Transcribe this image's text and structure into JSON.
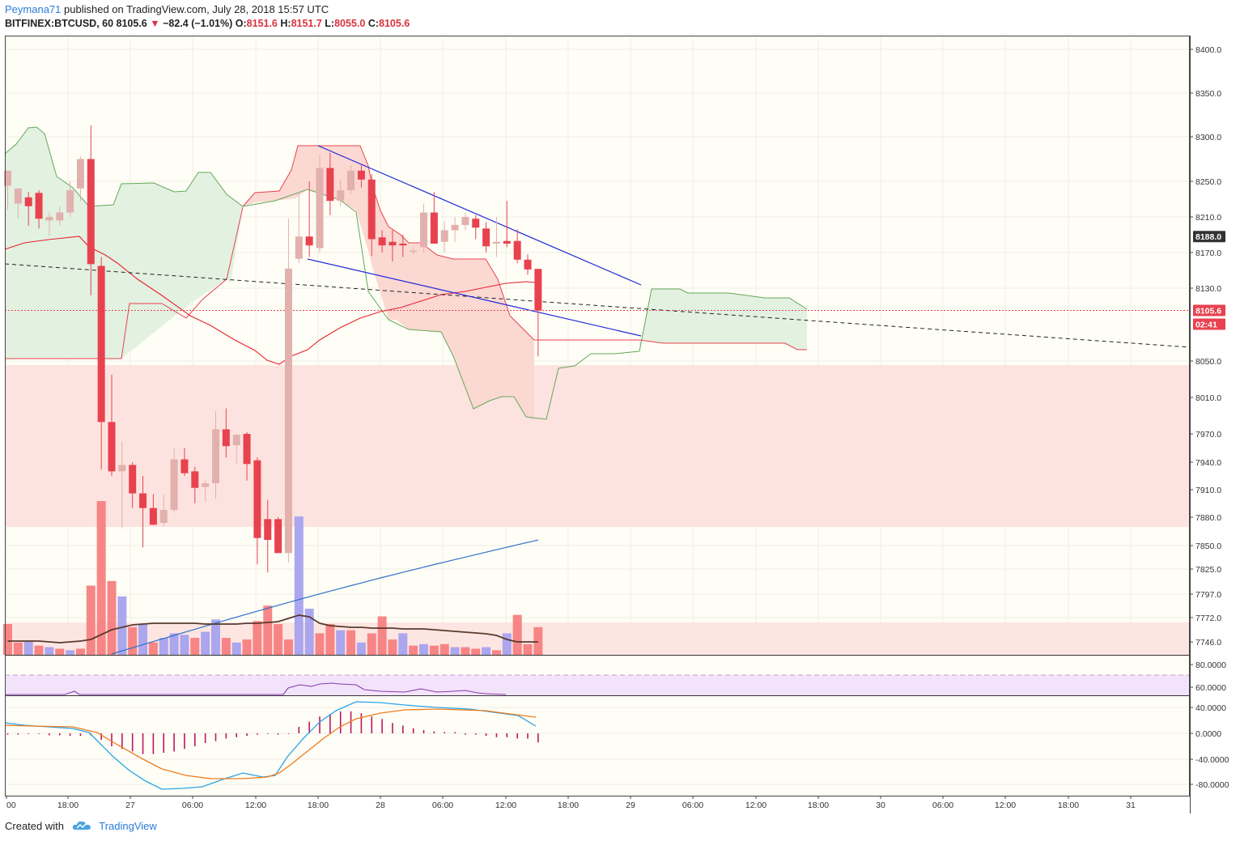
{
  "header": {
    "author": "Peymana71",
    "published": "published on TradingView.com, July 28, 2018 15:57 UTC",
    "symbol": "BITFINEX:BTCUSD, 60",
    "last": "8105.6",
    "arrow": "▼",
    "change": "−82.4 (−1.01%)",
    "o_label": "O:",
    "o_value": "8151.6",
    "h_label": "H:",
    "h_value": "8151.7",
    "l_label": "L:",
    "l_value": "8055.0",
    "c_label": "C:",
    "c_value": "8105.6"
  },
  "footer": {
    "created_with": "Created with",
    "brand": "TradingView",
    "logo_icon": "tradingview-cloud-icon"
  },
  "colors": {
    "up": "#e2b1ad",
    "down": "#e8424f",
    "cloud_green": "#e3f1e1",
    "cloud_red": "#fbd8d2",
    "zone": "#fde3df",
    "trend": "#1e28d9",
    "ma_blue": "#2d6fc9"
  },
  "chart_data": {
    "type": "candlestick",
    "title": "",
    "ylim": [
      7728,
      8425
    ],
    "price_ticks": [
      "8400.0",
      "8350.0",
      "8300.0",
      "8250.0",
      "8210.0",
      "8170.0",
      "8130.0",
      "8050.0",
      "8010.0",
      "7970.0",
      "7940.0",
      "7910.0",
      "7880.0",
      "7850.0",
      "7825.0",
      "7797.0",
      "7772.0",
      "7746.0"
    ],
    "price_tags": [
      {
        "text": "8188.0",
        "value": 8188.0,
        "color": "#333333"
      },
      {
        "text": "8105.6",
        "value": 8105.6,
        "color": "#e8424f"
      },
      {
        "text": "02:41",
        "value": 8088,
        "color": "#e8424f"
      }
    ],
    "x_ticks": [
      "00",
      "18:00",
      "27",
      "06:00",
      "12:00",
      "18:00",
      "28",
      "06:00",
      "12:00",
      "18:00",
      "29",
      "06:00",
      "12:00",
      "18:00",
      "30",
      "06:00",
      "12:00",
      "18:00",
      "31"
    ],
    "candles": [
      {
        "o": 8245,
        "h": 8262,
        "l": 8218,
        "c": 8262
      },
      {
        "o": 8225,
        "h": 8242,
        "l": 8208,
        "c": 8242
      },
      {
        "o": 8232,
        "h": 8238,
        "l": 8200,
        "c": 8222
      },
      {
        "o": 8237,
        "h": 8240,
        "l": 8197,
        "c": 8208
      },
      {
        "o": 8206,
        "h": 8215,
        "l": 8189,
        "c": 8210
      },
      {
        "o": 8206,
        "h": 8222,
        "l": 8200,
        "c": 8215
      },
      {
        "o": 8215,
        "h": 8250,
        "l": 8210,
        "c": 8240
      },
      {
        "o": 8242,
        "h": 8278,
        "l": 8228,
        "c": 8275
      },
      {
        "o": 8275,
        "h": 8313,
        "l": 8122,
        "c": 8157
      },
      {
        "o": 8155,
        "h": 8165,
        "l": 7932,
        "c": 7983
      },
      {
        "o": 7983,
        "h": 8035,
        "l": 7925,
        "c": 7930
      },
      {
        "o": 7930,
        "h": 7962,
        "l": 7868,
        "c": 7937
      },
      {
        "o": 7937,
        "h": 7940,
        "l": 7890,
        "c": 7906
      },
      {
        "o": 7906,
        "h": 7925,
        "l": 7848,
        "c": 7890
      },
      {
        "o": 7890,
        "h": 7905,
        "l": 7872,
        "c": 7872
      },
      {
        "o": 7874,
        "h": 7905,
        "l": 7870,
        "c": 7888
      },
      {
        "o": 7888,
        "h": 7955,
        "l": 7885,
        "c": 7943
      },
      {
        "o": 7943,
        "h": 7955,
        "l": 7925,
        "c": 7928
      },
      {
        "o": 7930,
        "h": 7935,
        "l": 7895,
        "c": 7912
      },
      {
        "o": 7913,
        "h": 7920,
        "l": 7897,
        "c": 7917
      },
      {
        "o": 7917,
        "h": 7995,
        "l": 7900,
        "c": 7975
      },
      {
        "o": 7975,
        "h": 7998,
        "l": 7945,
        "c": 7957
      },
      {
        "o": 7958,
        "h": 7970,
        "l": 7938,
        "c": 7969
      },
      {
        "o": 7970,
        "h": 7972,
        "l": 7920,
        "c": 7938
      },
      {
        "o": 7942,
        "h": 7945,
        "l": 7830,
        "c": 7858
      },
      {
        "o": 7878,
        "h": 7899,
        "l": 7821,
        "c": 7856
      },
      {
        "o": 7878,
        "h": 7880,
        "l": 7845,
        "c": 7842
      },
      {
        "o": 7842,
        "h": 8208,
        "l": 7832,
        "c": 8152
      },
      {
        "o": 8163,
        "h": 8238,
        "l": 8158,
        "c": 8188
      },
      {
        "o": 8188,
        "h": 8250,
        "l": 8165,
        "c": 8178
      },
      {
        "o": 8175,
        "h": 8280,
        "l": 8170,
        "c": 8265
      },
      {
        "o": 8265,
        "h": 8282,
        "l": 8212,
        "c": 8228
      },
      {
        "o": 8228,
        "h": 8252,
        "l": 8222,
        "c": 8240
      },
      {
        "o": 8240,
        "h": 8268,
        "l": 8236,
        "c": 8262
      },
      {
        "o": 8262,
        "h": 8268,
        "l": 8243,
        "c": 8252
      },
      {
        "o": 8252,
        "h": 8258,
        "l": 8166,
        "c": 8185
      },
      {
        "o": 8187,
        "h": 8195,
        "l": 8170,
        "c": 8178
      },
      {
        "o": 8182,
        "h": 8195,
        "l": 8160,
        "c": 8178
      },
      {
        "o": 8180,
        "h": 8190,
        "l": 8165,
        "c": 8178
      },
      {
        "o": 8172,
        "h": 8175,
        "l": 8168,
        "c": 8172
      },
      {
        "o": 8176,
        "h": 8225,
        "l": 8170,
        "c": 8215
      },
      {
        "o": 8215,
        "h": 8238,
        "l": 8180,
        "c": 8180
      },
      {
        "o": 8182,
        "h": 8205,
        "l": 8170,
        "c": 8195
      },
      {
        "o": 8195,
        "h": 8210,
        "l": 8182,
        "c": 8201
      },
      {
        "o": 8201,
        "h": 8215,
        "l": 8195,
        "c": 8210
      },
      {
        "o": 8208,
        "h": 8212,
        "l": 8185,
        "c": 8198
      },
      {
        "o": 8197,
        "h": 8204,
        "l": 8170,
        "c": 8177
      },
      {
        "o": 8180,
        "h": 8210,
        "l": 8165,
        "c": 8182
      },
      {
        "o": 8183,
        "h": 8228,
        "l": 8176,
        "c": 8180
      },
      {
        "o": 8183,
        "h": 8196,
        "l": 8158,
        "c": 8162
      },
      {
        "o": 8162,
        "h": 8168,
        "l": 8145,
        "c": 8151
      },
      {
        "o": 8151.6,
        "h": 8151.7,
        "l": 8055.0,
        "c": 8105.6
      }
    ],
    "volume": {
      "max": 100,
      "values": [
        20,
        8,
        9,
        6,
        5,
        4,
        3,
        4,
        45,
        100,
        48,
        38,
        18,
        20,
        8,
        11,
        14,
        13,
        11,
        15,
        23,
        11,
        8,
        10,
        22,
        32,
        20,
        10,
        90,
        30,
        14,
        20,
        16,
        16,
        8,
        14,
        25,
        10,
        14,
        6,
        7,
        6,
        7,
        5,
        5,
        4,
        5,
        3,
        14,
        26,
        7,
        18
      ],
      "colors": [
        "d",
        "d",
        "u",
        "d",
        "u",
        "d",
        "u",
        "d",
        "d",
        "d",
        "d",
        "u",
        "d",
        "u",
        "d",
        "u",
        "u",
        "u",
        "d",
        "u",
        "u",
        "d",
        "u",
        "d",
        "d",
        "d",
        "d",
        "d",
        "u",
        "u",
        "d",
        "d",
        "u",
        "d",
        "u",
        "d",
        "d",
        "d",
        "u",
        "d",
        "u",
        "d",
        "d",
        "u",
        "d",
        "d",
        "u",
        "d",
        "u",
        "d",
        "d",
        "d"
      ]
    },
    "rsi_ticks": [
      "80.0000",
      "60.0000"
    ],
    "macd_ticks": [
      "40.0000",
      "0.0000",
      "-40.0000",
      "-80.0000"
    ]
  }
}
